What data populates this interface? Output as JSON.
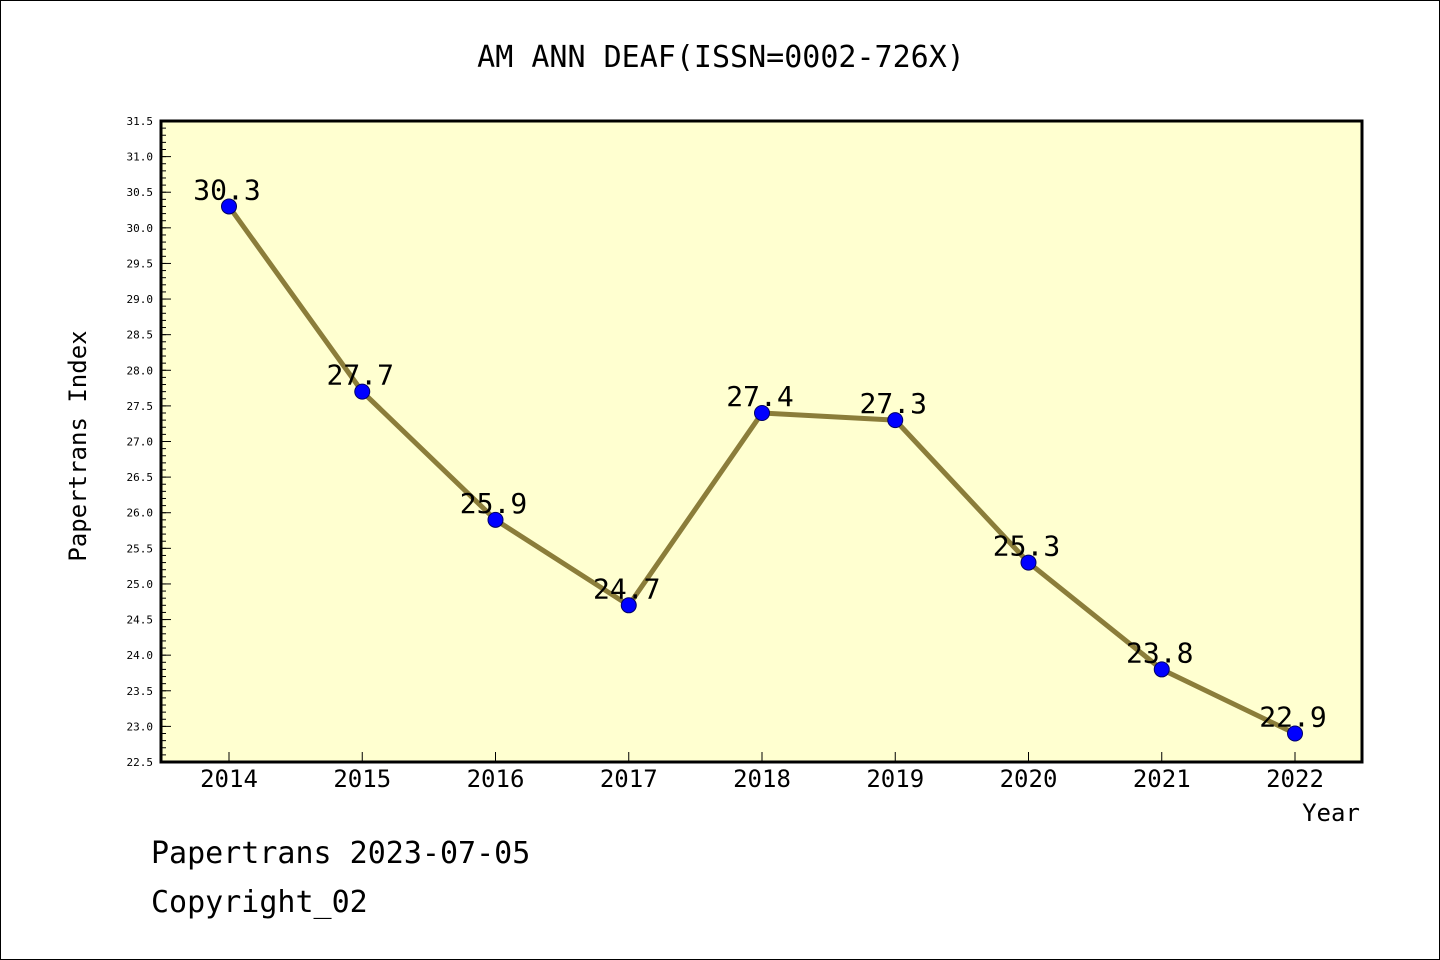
{
  "chart_data": {
    "type": "line",
    "title": "AM ANN DEAF(ISSN=0002-726X)",
    "xlabel": "Year",
    "ylabel": "Papertrans Index",
    "categories": [
      "2014",
      "2015",
      "2016",
      "2017",
      "2018",
      "2019",
      "2020",
      "2021",
      "2022"
    ],
    "series": [
      {
        "values": [
          30.3,
          27.7,
          25.9,
          24.7,
          27.4,
          27.3,
          25.3,
          23.8,
          22.9
        ],
        "data_labels": [
          "30.3",
          "27.7",
          "25.9",
          "24.7",
          "27.4",
          "27.3",
          "25.3",
          "23.8",
          "22.9"
        ]
      }
    ],
    "ylim": [
      22.5,
      31.5
    ],
    "yticks": [
      "22.5",
      "23.0",
      "23.5",
      "24.0",
      "24.5",
      "25.0",
      "25.5",
      "26.0",
      "26.5",
      "27.0",
      "27.5",
      "28.0",
      "28.5",
      "29.0",
      "29.5",
      "30.0",
      "30.5",
      "31.0",
      "31.5"
    ],
    "grid": false,
    "colors": {
      "plot_background": "#ffffd0",
      "line": "#8b7d3a",
      "marker": "#0000ff"
    }
  },
  "footer": {
    "date_text": "Papertrans 2023-07-05",
    "copyright_text": "Copyright_02"
  }
}
